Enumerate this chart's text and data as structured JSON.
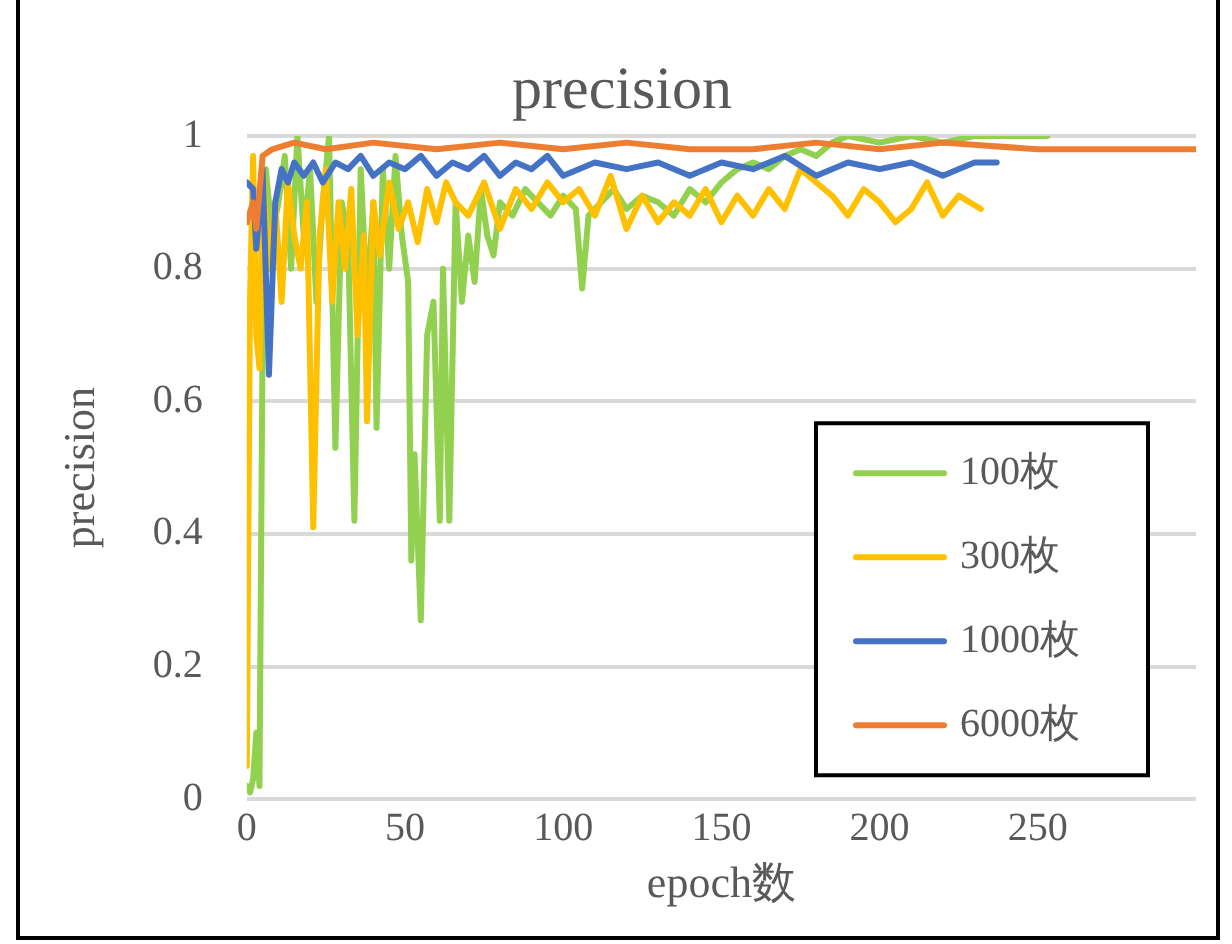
{
  "chart_data": {
    "type": "line",
    "title": "precision",
    "xlabel": "epoch数",
    "ylabel": "precision",
    "xlim": [
      0,
      300
    ],
    "xticks": [
      0,
      50,
      100,
      150,
      200,
      250
    ],
    "ylim": [
      0,
      1
    ],
    "yticks": [
      0,
      0.2,
      0.4,
      0.6,
      0.8,
      1
    ],
    "grid": "y",
    "legend": "bottom right",
    "marker": "none",
    "line_style": "solid",
    "series": [
      {
        "name": "100枚",
        "color": "#92d050",
        "x": [
          0,
          1,
          2,
          3,
          4,
          5,
          6,
          8,
          10,
          12,
          14,
          16,
          18,
          20,
          22,
          24,
          26,
          28,
          30,
          32,
          34,
          36,
          38,
          40,
          41,
          43,
          45,
          47,
          49,
          51,
          52,
          53,
          55,
          57,
          59,
          61,
          62,
          64,
          66,
          68,
          70,
          72,
          74,
          76,
          78,
          80,
          84,
          88,
          92,
          96,
          100,
          104,
          106,
          108,
          112,
          116,
          120,
          125,
          130,
          135,
          140,
          145,
          150,
          155,
          160,
          165,
          170,
          175,
          180,
          185,
          190,
          200,
          210,
          220,
          230,
          240,
          253
        ],
        "values": [
          0.02,
          0.01,
          0.03,
          0.1,
          0.02,
          0.7,
          0.95,
          0.85,
          0.9,
          0.97,
          0.8,
          1.0,
          0.85,
          0.95,
          0.75,
          0.9,
          1.0,
          0.53,
          0.9,
          0.85,
          0.42,
          0.95,
          0.75,
          0.9,
          0.56,
          0.95,
          0.8,
          0.97,
          0.85,
          0.78,
          0.36,
          0.52,
          0.27,
          0.7,
          0.75,
          0.42,
          0.8,
          0.42,
          0.9,
          0.75,
          0.85,
          0.78,
          0.92,
          0.85,
          0.82,
          0.9,
          0.88,
          0.92,
          0.9,
          0.88,
          0.91,
          0.89,
          0.77,
          0.88,
          0.9,
          0.92,
          0.89,
          0.91,
          0.9,
          0.88,
          0.92,
          0.9,
          0.93,
          0.95,
          0.96,
          0.95,
          0.97,
          0.98,
          0.97,
          0.99,
          1.0,
          0.99,
          1.0,
          0.99,
          1.0,
          1.0,
          1.0
        ]
      },
      {
        "name": "300枚",
        "color": "#ffc000",
        "x": [
          0,
          1,
          2,
          3,
          4,
          5,
          7,
          9,
          11,
          13,
          15,
          17,
          19,
          21,
          23,
          25,
          27,
          29,
          31,
          33,
          35,
          37,
          38,
          40,
          42,
          45,
          48,
          51,
          54,
          57,
          60,
          63,
          66,
          70,
          75,
          80,
          85,
          90,
          95,
          100,
          105,
          110,
          115,
          120,
          125,
          130,
          135,
          140,
          145,
          150,
          155,
          160,
          165,
          170,
          175,
          180,
          185,
          190,
          195,
          200,
          205,
          210,
          215,
          220,
          225,
          232
        ],
        "values": [
          0.05,
          0.75,
          0.97,
          0.7,
          0.65,
          0.95,
          0.8,
          0.9,
          0.75,
          0.93,
          0.85,
          0.8,
          0.9,
          0.41,
          0.85,
          0.95,
          0.75,
          0.9,
          0.8,
          0.92,
          0.7,
          0.85,
          0.57,
          0.9,
          0.82,
          0.93,
          0.86,
          0.9,
          0.84,
          0.92,
          0.87,
          0.93,
          0.9,
          0.88,
          0.93,
          0.86,
          0.92,
          0.89,
          0.93,
          0.9,
          0.92,
          0.88,
          0.94,
          0.86,
          0.91,
          0.87,
          0.9,
          0.88,
          0.92,
          0.87,
          0.91,
          0.88,
          0.92,
          0.89,
          0.95,
          0.93,
          0.91,
          0.88,
          0.92,
          0.9,
          0.87,
          0.89,
          0.93,
          0.88,
          0.91,
          0.89
        ]
      },
      {
        "name": "1000枚",
        "color": "#4472c4",
        "x": [
          0,
          2,
          3,
          5,
          7,
          9,
          11,
          13,
          15,
          18,
          21,
          24,
          28,
          32,
          36,
          40,
          45,
          50,
          55,
          60,
          65,
          70,
          75,
          80,
          85,
          90,
          95,
          100,
          110,
          120,
          130,
          140,
          150,
          160,
          170,
          180,
          190,
          200,
          210,
          220,
          230,
          237
        ],
        "values": [
          0.93,
          0.92,
          0.83,
          0.95,
          0.64,
          0.9,
          0.95,
          0.93,
          0.96,
          0.94,
          0.96,
          0.93,
          0.96,
          0.95,
          0.97,
          0.94,
          0.96,
          0.95,
          0.97,
          0.94,
          0.96,
          0.95,
          0.97,
          0.94,
          0.96,
          0.95,
          0.97,
          0.94,
          0.96,
          0.95,
          0.96,
          0.94,
          0.96,
          0.95,
          0.97,
          0.94,
          0.96,
          0.95,
          0.96,
          0.94,
          0.96,
          0.96
        ]
      },
      {
        "name": "6000枚",
        "color": "#ed7d31",
        "x": [
          0,
          2,
          3,
          5,
          8,
          15,
          25,
          40,
          60,
          80,
          100,
          120,
          140,
          160,
          180,
          200,
          220,
          250,
          275,
          300
        ],
        "values": [
          0.87,
          0.9,
          0.86,
          0.97,
          0.98,
          0.99,
          0.98,
          0.99,
          0.98,
          0.99,
          0.98,
          0.99,
          0.98,
          0.98,
          0.99,
          0.98,
          0.99,
          0.98,
          0.98,
          0.98
        ]
      }
    ]
  }
}
